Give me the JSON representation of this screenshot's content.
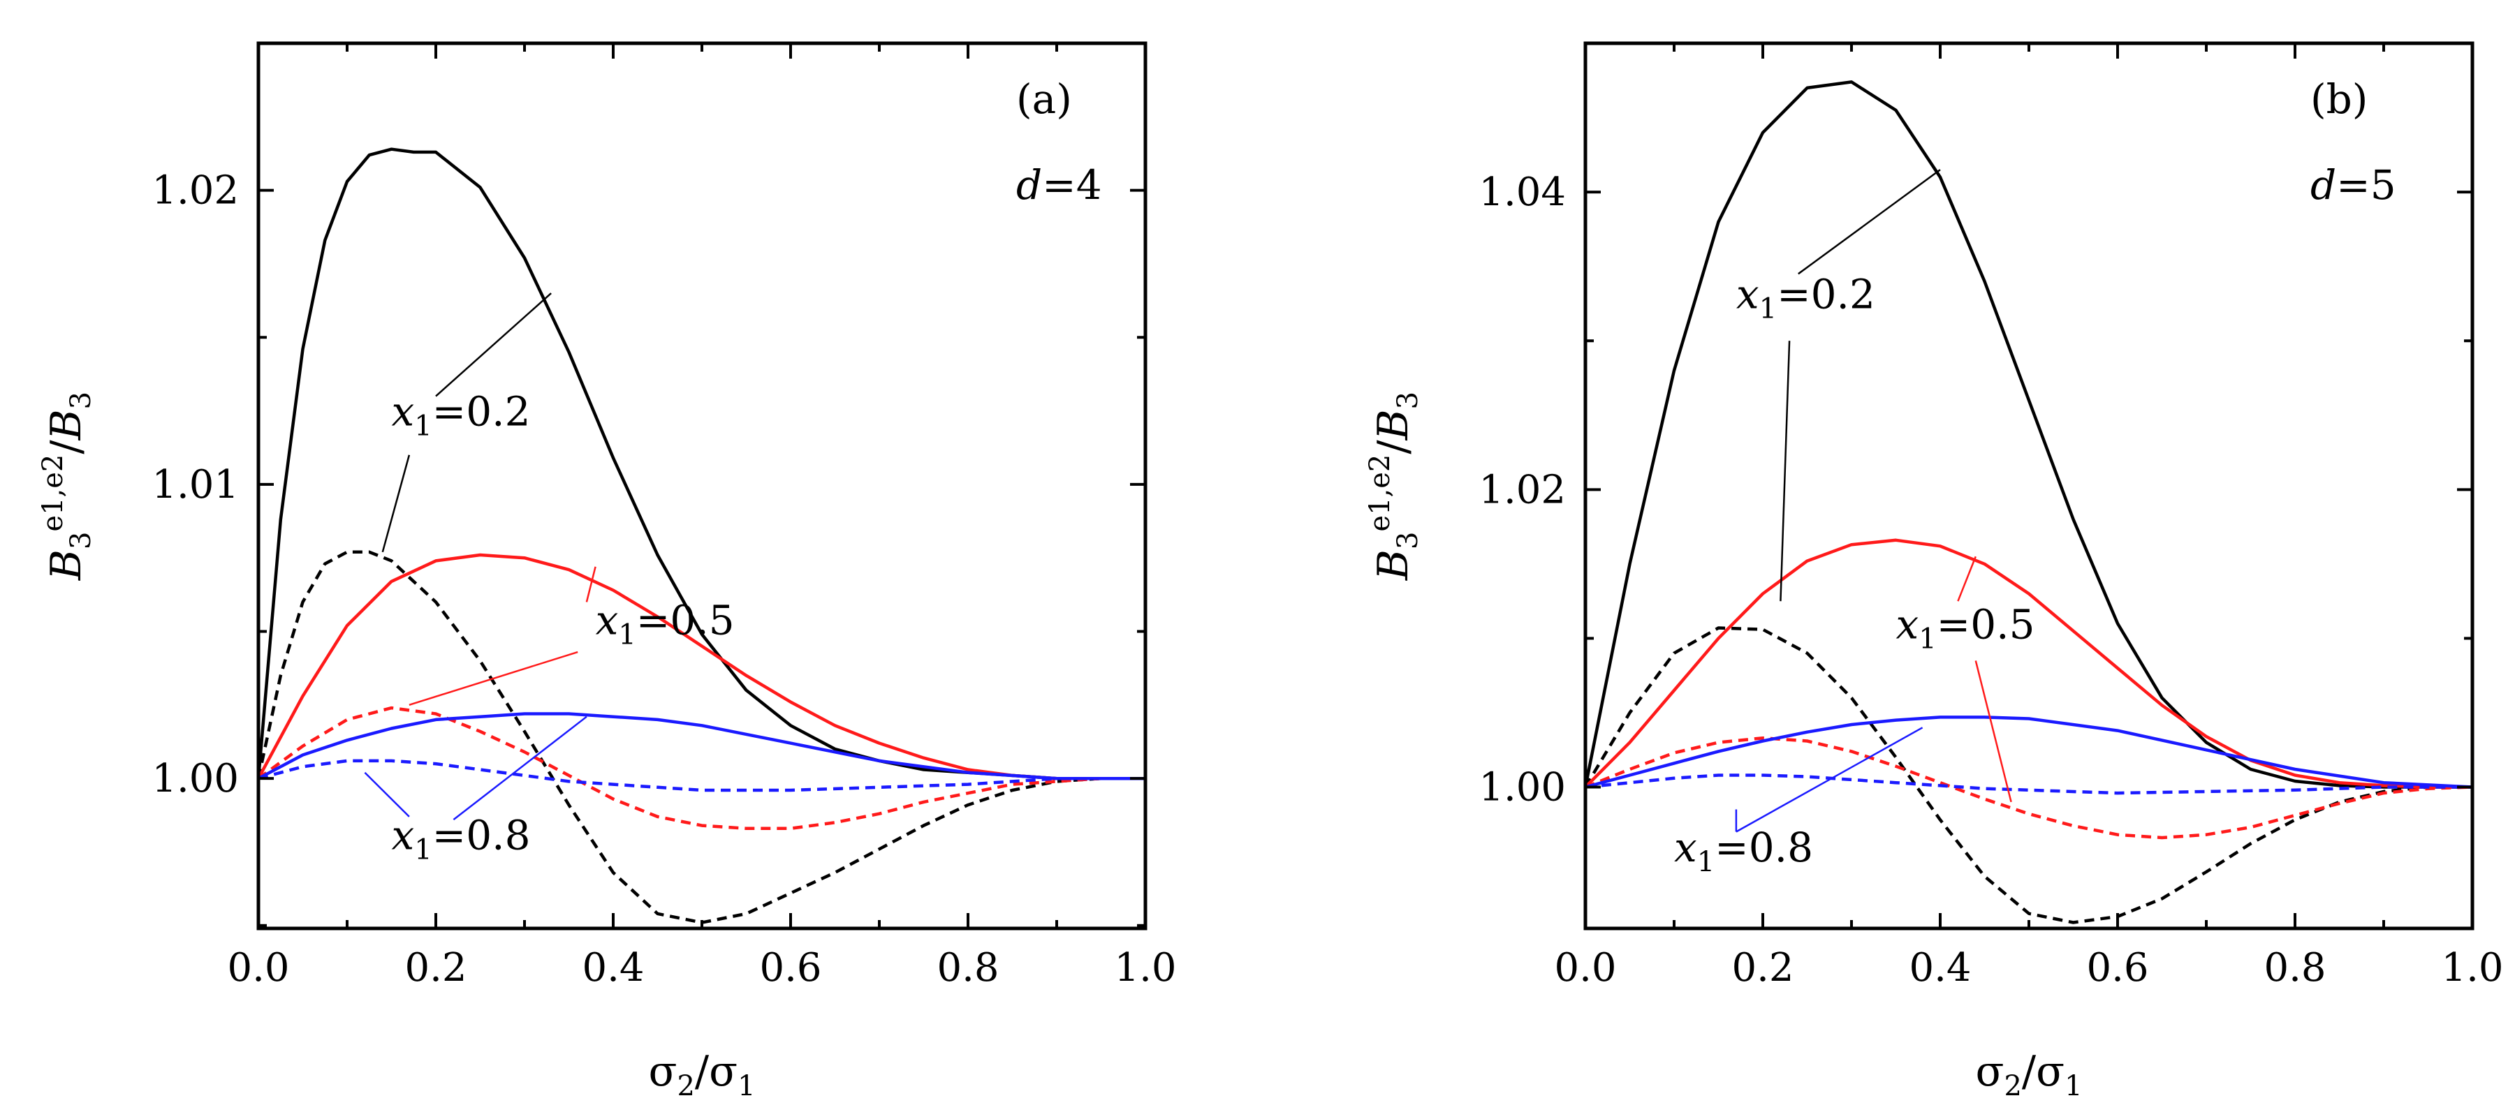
{
  "colors": {
    "black": "#000000",
    "red": "#ff1a1a",
    "blue": "#1a1aff"
  },
  "chart_data": [
    {
      "type": "line",
      "panel": "(a)",
      "d_label": {
        "var": "d",
        "eq": "=4"
      },
      "xlabel": {
        "num": "σ",
        "num_sub": "2",
        "sep": "/",
        "den": "σ",
        "den_sub": "1"
      },
      "ylabel": {
        "base": "B",
        "sub": "3",
        "sup": "e1,e2",
        "sep": "/",
        "base2": "B",
        "sub2": "3"
      },
      "xlim": [
        0,
        1
      ],
      "ylim": [
        0.9949,
        1.025
      ],
      "xticks": [
        0,
        0.2,
        0.4,
        0.6,
        0.8,
        1.0
      ],
      "xtick_labels": [
        "0.0",
        "0.2",
        "0.4",
        "0.6",
        "0.8",
        "1.0"
      ],
      "yticks": [
        1.0,
        1.01,
        1.02
      ],
      "ytick_labels": [
        "1.00",
        "1.01",
        "1.02"
      ],
      "series": [
        {
          "name": "x1=0.2 e1",
          "x1": "0.2",
          "color": "black",
          "dash": false,
          "x": [
            0,
            0.025,
            0.05,
            0.075,
            0.1,
            0.125,
            0.15,
            0.175,
            0.2,
            0.25,
            0.3,
            0.35,
            0.4,
            0.45,
            0.5,
            0.55,
            0.6,
            0.65,
            0.7,
            0.75,
            0.8,
            0.85,
            0.9,
            0.95,
            1.0
          ],
          "y": [
            1.0,
            1.0088,
            1.0146,
            1.0183,
            1.0203,
            1.0212,
            1.0214,
            1.0213,
            1.0213,
            1.0201,
            1.0177,
            1.0145,
            1.0109,
            1.0076,
            1.0049,
            1.003,
            1.0018,
            1.001,
            1.0006,
            1.0003,
            1.0002,
            1.0001,
            1.0,
            1.0,
            1.0
          ]
        },
        {
          "name": "x1=0.2 e2",
          "x1": "0.2",
          "color": "black",
          "dash": true,
          "x": [
            0,
            0.025,
            0.05,
            0.075,
            0.1,
            0.125,
            0.15,
            0.2,
            0.25,
            0.3,
            0.35,
            0.4,
            0.45,
            0.5,
            0.55,
            0.6,
            0.65,
            0.7,
            0.75,
            0.8,
            0.85,
            0.9,
            0.95,
            1.0
          ],
          "y": [
            1.0,
            1.0035,
            1.006,
            1.0073,
            1.0077,
            1.0077,
            1.0074,
            1.006,
            1.004,
            1.0016,
            0.9991,
            0.9968,
            0.9954,
            0.9951,
            0.9954,
            0.9961,
            0.9968,
            0.9976,
            0.9984,
            0.9991,
            0.9996,
            0.9999,
            1.0,
            1.0
          ]
        },
        {
          "name": "x1=0.5 e1",
          "x1": "0.5",
          "color": "red",
          "dash": false,
          "x": [
            0,
            0.05,
            0.1,
            0.15,
            0.2,
            0.25,
            0.3,
            0.35,
            0.4,
            0.45,
            0.5,
            0.55,
            0.6,
            0.65,
            0.7,
            0.75,
            0.8,
            0.85,
            0.9,
            0.95,
            1.0
          ],
          "y": [
            1.0,
            1.0028,
            1.0052,
            1.0067,
            1.0074,
            1.0076,
            1.0075,
            1.0071,
            1.0064,
            1.0055,
            1.0045,
            1.0035,
            1.0026,
            1.0018,
            1.0012,
            1.0007,
            1.0003,
            1.0001,
            1.0,
            1.0,
            1.0
          ]
        },
        {
          "name": "x1=0.5 e2",
          "x1": "0.5",
          "color": "red",
          "dash": true,
          "x": [
            0,
            0.05,
            0.1,
            0.15,
            0.2,
            0.25,
            0.3,
            0.35,
            0.4,
            0.45,
            0.5,
            0.55,
            0.6,
            0.65,
            0.7,
            0.75,
            0.8,
            0.85,
            0.9,
            0.95,
            1.0
          ],
          "y": [
            1.0,
            1.0011,
            1.002,
            1.0024,
            1.0022,
            1.0016,
            1.0009,
            1.0001,
            0.9993,
            0.9987,
            0.9984,
            0.9983,
            0.9983,
            0.9985,
            0.9988,
            0.9992,
            0.9995,
            0.9998,
            0.9999,
            1.0,
            1.0
          ]
        },
        {
          "name": "x1=0.8 e1",
          "x1": "0.8",
          "color": "blue",
          "dash": false,
          "x": [
            0,
            0.05,
            0.1,
            0.15,
            0.2,
            0.25,
            0.3,
            0.35,
            0.4,
            0.45,
            0.5,
            0.6,
            0.7,
            0.8,
            0.9,
            1.0
          ],
          "y": [
            1.0,
            1.0008,
            1.0013,
            1.0017,
            1.002,
            1.0021,
            1.0022,
            1.0022,
            1.0021,
            1.002,
            1.0018,
            1.0012,
            1.0006,
            1.0002,
            1.0,
            1.0
          ]
        },
        {
          "name": "x1=0.8 e2",
          "x1": "0.8",
          "color": "blue",
          "dash": true,
          "x": [
            0,
            0.05,
            0.1,
            0.15,
            0.2,
            0.25,
            0.3,
            0.35,
            0.4,
            0.45,
            0.5,
            0.6,
            0.7,
            0.8,
            0.9,
            1.0
          ],
          "y": [
            1.0,
            1.0004,
            1.0006,
            1.0006,
            1.0005,
            1.0003,
            1.0001,
            0.9999,
            0.9998,
            0.9997,
            0.9996,
            0.9996,
            0.9997,
            0.9998,
            1.0,
            1.0
          ]
        }
      ],
      "annotations": [
        {
          "label_var": "x",
          "label_sub": "1",
          "label_eq": "=0.2",
          "color": "black",
          "at": [
            0.15,
            1.012
          ],
          "leaders": [
            [
              0.2,
              1.013,
              0.33,
              1.0165
            ],
            [
              0.17,
              1.011,
              0.14,
              1.0077
            ]
          ]
        },
        {
          "label_var": "x",
          "label_sub": "1",
          "label_eq": "=0.5",
          "color": "red",
          "at": [
            0.38,
            1.0049
          ],
          "leaders": [
            [
              0.37,
              1.006,
              0.38,
              1.0072
            ],
            [
              0.36,
              1.0043,
              0.17,
              1.0025
            ]
          ]
        },
        {
          "label_var": "x",
          "label_sub": "1",
          "label_eq": "=0.8",
          "color": "blue",
          "at": [
            0.15,
            0.9976
          ],
          "leaders": [
            [
              0.22,
              0.9986,
              0.37,
              1.0021
            ],
            [
              0.17,
              0.9987,
              0.12,
              1.0002
            ]
          ]
        }
      ]
    },
    {
      "type": "line",
      "panel": "(b)",
      "d_label": {
        "var": "d",
        "eq": "=5"
      },
      "xlabel": {
        "num": "σ",
        "num_sub": "2",
        "sep": "/",
        "den": "σ",
        "den_sub": "1"
      },
      "ylabel": {
        "base": "B",
        "sub": "3",
        "sup": "e1,e2",
        "sep": "/",
        "base2": "B",
        "sub2": "3"
      },
      "xlim": [
        0,
        1
      ],
      "ylim": [
        0.9905,
        1.05
      ],
      "xticks": [
        0,
        0.2,
        0.4,
        0.6,
        0.8,
        1.0
      ],
      "xtick_labels": [
        "0.0",
        "0.2",
        "0.4",
        "0.6",
        "0.8",
        "1.0"
      ],
      "yticks": [
        1.0,
        1.02,
        1.04
      ],
      "ytick_labels": [
        "1.00",
        "1.02",
        "1.04"
      ],
      "series": [
        {
          "name": "x1=0.2 e1",
          "x1": "0.2",
          "color": "black",
          "dash": false,
          "x": [
            0,
            0.05,
            0.1,
            0.15,
            0.2,
            0.25,
            0.3,
            0.35,
            0.4,
            0.45,
            0.5,
            0.55,
            0.6,
            0.65,
            0.7,
            0.75,
            0.8,
            0.85,
            0.9,
            0.95,
            1.0
          ],
          "y": [
            1.0,
            1.015,
            1.028,
            1.038,
            1.044,
            1.047,
            1.0474,
            1.0455,
            1.041,
            1.034,
            1.026,
            1.018,
            1.011,
            1.006,
            1.003,
            1.0012,
            1.0004,
            1.0001,
            1.0,
            1.0,
            1.0
          ]
        },
        {
          "name": "x1=0.2 e2",
          "x1": "0.2",
          "color": "black",
          "dash": true,
          "x": [
            0,
            0.05,
            0.1,
            0.15,
            0.2,
            0.25,
            0.3,
            0.35,
            0.4,
            0.45,
            0.5,
            0.55,
            0.6,
            0.65,
            0.7,
            0.75,
            0.8,
            0.85,
            0.9,
            0.95,
            1.0
          ],
          "y": [
            1.0,
            1.005,
            1.009,
            1.0107,
            1.0106,
            1.009,
            1.006,
            1.002,
            0.9978,
            0.994,
            0.9915,
            0.9909,
            0.9913,
            0.9925,
            0.9943,
            0.9962,
            0.9978,
            0.999,
            0.9997,
            1.0,
            1.0
          ]
        },
        {
          "name": "x1=0.5 e1",
          "x1": "0.5",
          "color": "red",
          "dash": false,
          "x": [
            0,
            0.05,
            0.1,
            0.15,
            0.2,
            0.25,
            0.3,
            0.35,
            0.4,
            0.45,
            0.5,
            0.55,
            0.6,
            0.65,
            0.7,
            0.75,
            0.8,
            0.85,
            0.9,
            0.95,
            1.0
          ],
          "y": [
            1.0,
            1.003,
            1.0065,
            1.01,
            1.013,
            1.0152,
            1.0163,
            1.0166,
            1.0162,
            1.015,
            1.013,
            1.0105,
            1.008,
            1.0055,
            1.0034,
            1.0018,
            1.0008,
            1.0003,
            1.0001,
            1.0,
            1.0
          ]
        },
        {
          "name": "x1=0.5 e2",
          "x1": "0.5",
          "color": "red",
          "dash": true,
          "x": [
            0,
            0.05,
            0.1,
            0.15,
            0.2,
            0.25,
            0.3,
            0.35,
            0.4,
            0.45,
            0.5,
            0.55,
            0.6,
            0.65,
            0.7,
            0.75,
            0.8,
            0.85,
            0.9,
            0.95,
            1.0
          ],
          "y": [
            1.0,
            1.0012,
            1.0023,
            1.003,
            1.0033,
            1.0031,
            1.0024,
            1.0014,
            1.0003,
            0.9992,
            0.9982,
            0.9974,
            0.9968,
            0.9966,
            0.9968,
            0.9973,
            0.9981,
            0.9989,
            0.9996,
            0.9999,
            1.0
          ]
        },
        {
          "name": "x1=0.8 e1",
          "x1": "0.8",
          "color": "blue",
          "dash": false,
          "x": [
            0,
            0.05,
            0.1,
            0.15,
            0.2,
            0.25,
            0.3,
            0.35,
            0.4,
            0.45,
            0.5,
            0.6,
            0.7,
            0.8,
            0.9,
            1.0
          ],
          "y": [
            1.0,
            1.0008,
            1.0016,
            1.0024,
            1.0031,
            1.0037,
            1.0042,
            1.0045,
            1.0047,
            1.0047,
            1.0046,
            1.0038,
            1.0025,
            1.0012,
            1.0003,
            1.0
          ]
        },
        {
          "name": "x1=0.8 e2",
          "x1": "0.8",
          "color": "blue",
          "dash": true,
          "x": [
            0,
            0.05,
            0.1,
            0.15,
            0.2,
            0.25,
            0.3,
            0.35,
            0.4,
            0.45,
            0.5,
            0.6,
            0.7,
            0.8,
            0.9,
            1.0
          ],
          "y": [
            1.0,
            1.0003,
            1.0006,
            1.0008,
            1.0008,
            1.0007,
            1.0005,
            1.0003,
            1.0001,
            0.9999,
            0.9998,
            0.9996,
            0.9997,
            0.9998,
            1.0,
            1.0
          ]
        }
      ],
      "annotations": [
        {
          "label_var": "x",
          "label_sub": "1",
          "label_eq": "=0.2",
          "color": "black",
          "at": [
            0.17,
            1.0322
          ],
          "leaders": [
            [
              0.24,
              1.0345,
              0.4,
              1.0415
            ],
            [
              0.23,
              1.03,
              0.22,
              1.0125
            ]
          ]
        },
        {
          "label_var": "x",
          "label_sub": "1",
          "label_eq": "=0.5",
          "color": "red",
          "at": [
            0.35,
            1.01
          ],
          "leaders": [
            [
              0.42,
              1.0125,
              0.44,
              1.0155
            ],
            [
              0.44,
              1.0085,
              0.48,
              0.999
            ]
          ]
        },
        {
          "label_var": "x",
          "label_sub": "1",
          "label_eq": "=0.8",
          "color": "blue",
          "at": [
            0.1,
            0.995
          ],
          "leaders": [
            [
              0.17,
              0.997,
              0.38,
              1.004
            ],
            [
              0.17,
              0.997,
              0.17,
              0.9985
            ]
          ]
        }
      ]
    }
  ]
}
